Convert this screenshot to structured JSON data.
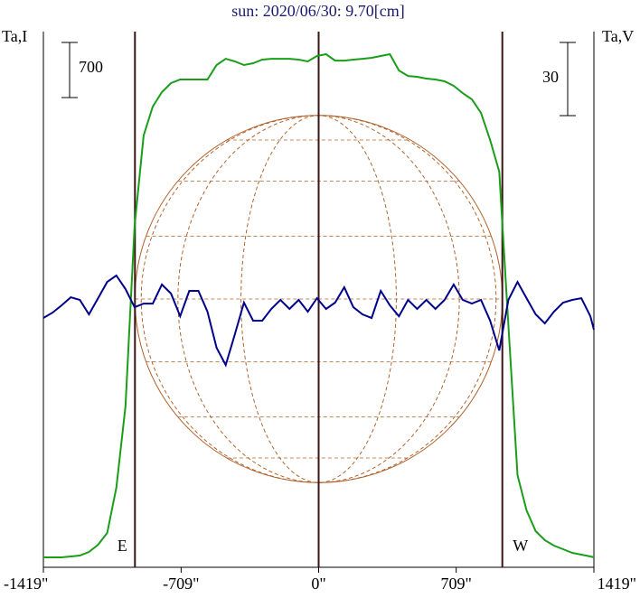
{
  "chart_data": {
    "type": "line",
    "title": "sun: 2020/06/30: 9.70[cm]",
    "ylabel": "Ta,I",
    "y2label": "Ta,V",
    "x": [
      -1419,
      -1372,
      -1325,
      -1278,
      -1231,
      -1184,
      -1137,
      -1090,
      -1043,
      -996,
      -949,
      -902,
      -855,
      -808,
      -761,
      -714,
      -667,
      -620,
      -573,
      -526,
      -479,
      -432,
      -385,
      -338,
      -291,
      -244,
      -197,
      -150,
      -103,
      -56,
      -9,
      38,
      85,
      132,
      179,
      226,
      273,
      320,
      367,
      414,
      461,
      508,
      555,
      602,
      649,
      696,
      743,
      790,
      837,
      884,
      931,
      978,
      1025,
      1072,
      1119,
      1166,
      1213,
      1260,
      1307,
      1354,
      1401,
      1419
    ],
    "series": [
      {
        "color": "#1a9e1a",
        "axis": "y",
        "values": [
          126,
          126,
          126,
          138,
          149,
          195,
          287,
          436,
          1010,
          2043,
          4338,
          5485,
          5852,
          6036,
          6151,
          6197,
          6197,
          6197,
          6197,
          6380,
          6460,
          6426,
          6380,
          6403,
          6449,
          6460,
          6460,
          6460,
          6449,
          6426,
          6495,
          6518,
          6437,
          6437,
          6449,
          6460,
          6472,
          6495,
          6518,
          6311,
          6242,
          6231,
          6208,
          6197,
          6174,
          6116,
          6024,
          5944,
          5772,
          5428,
          5026,
          3075,
          1170,
          723,
          459,
          344,
          275,
          230,
          184,
          161,
          138,
          126
        ]
      },
      {
        "color": "#00008b",
        "axis": "y2",
        "values": [
          0,
          2.2,
          5.2,
          8.5,
          7.4,
          1.5,
          8.1,
          14.8,
          17.4,
          11.9,
          4.4,
          5.9,
          5.9,
          13.7,
          10,
          0.7,
          11.1,
          11.1,
          2.6,
          -12.2,
          -19.3,
          -6.7,
          6.3,
          -1.1,
          -1.1,
          3.7,
          7.4,
          3.7,
          7.4,
          2.6,
          8.1,
          3.7,
          6.3,
          12.6,
          4.4,
          1.5,
          0,
          11.1,
          5.2,
          0.7,
          7.4,
          3.7,
          7.4,
          3.7,
          7.4,
          13.7,
          7.4,
          5.9,
          7.4,
          -1.1,
          -13.3,
          7.4,
          14.8,
          8.1,
          1.5,
          -2.2,
          2.6,
          6.3,
          7.4,
          8.1,
          0.7,
          -4.8
        ]
      }
    ],
    "xlim": [
      -1419,
      1419
    ],
    "xticks": [
      {
        "value": -1419,
        "label": "-1419\""
      },
      {
        "value": -709,
        "label": "-709\""
      },
      {
        "value": 0,
        "label": "0\""
      },
      {
        "value": 709,
        "label": "709\""
      },
      {
        "value": 1419,
        "label": "1419\""
      }
    ],
    "ylim": [
      0,
      6805
    ],
    "y2lim": [
      -102.2,
      117.4
    ],
    "scale_bar_y": 700,
    "scale_bar_y2": 30,
    "markers": [
      {
        "label": "E",
        "x": -947
      },
      {
        "label": "W",
        "x": 947
      }
    ]
  }
}
